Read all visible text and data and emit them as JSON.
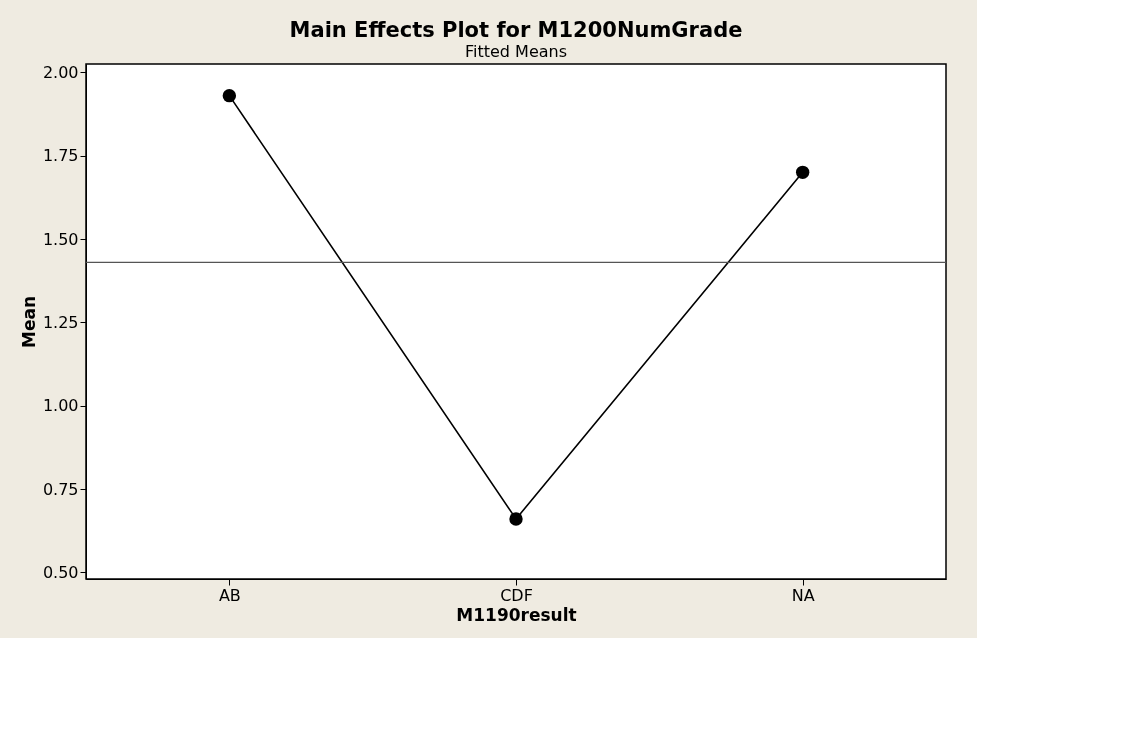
{
  "chart_data": {
    "type": "line",
    "title": "Main Effects Plot for M1200NumGrade",
    "subtitle": "Fitted Means",
    "xlabel": "M1190result",
    "ylabel": "Mean",
    "categories": [
      "AB",
      "CDF",
      "NA"
    ],
    "series": [
      {
        "color": "#000000",
        "values": [
          1.93,
          0.66,
          1.7
        ]
      }
    ],
    "ylim": [
      0.48,
      2.025
    ],
    "yticks": [
      {
        "value": 0.5,
        "label": "0.50"
      },
      {
        "value": 0.75,
        "label": "0.75"
      },
      {
        "value": 1.0,
        "label": "1.00"
      },
      {
        "value": 1.25,
        "label": "1.25"
      },
      {
        "value": 1.5,
        "label": "1.50"
      },
      {
        "value": 1.75,
        "label": "1.75"
      },
      {
        "value": 2.0,
        "label": "2.00"
      }
    ],
    "ref_lines": [
      {
        "axis": "y",
        "value": 1.43,
        "color": "#555555"
      }
    ],
    "marker": "circle",
    "line_style": "solid",
    "grid": false
  }
}
